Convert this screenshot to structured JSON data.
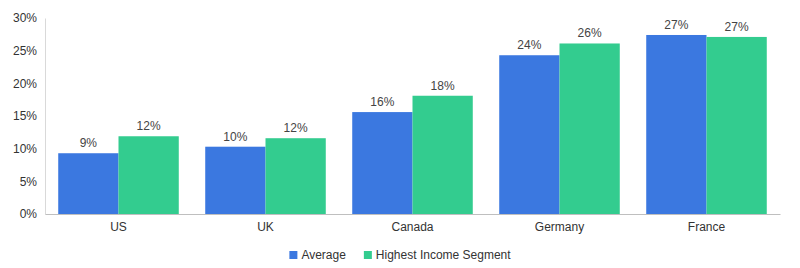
{
  "chart_data": {
    "type": "bar",
    "categories": [
      "US",
      "UK",
      "Canada",
      "Germany",
      "France"
    ],
    "series": [
      {
        "name": "Average",
        "color": "#3b78e0",
        "values": [
          9.3,
          10.3,
          15.6,
          24.3,
          27.4
        ],
        "value_labels": [
          "9%",
          "10%",
          "16%",
          "24%",
          "27%"
        ]
      },
      {
        "name": "Highest Income Segment",
        "color": "#33cc8f",
        "values": [
          11.9,
          11.6,
          18.1,
          26.1,
          27.1
        ],
        "value_labels": [
          "12%",
          "12%",
          "18%",
          "26%",
          "27%"
        ]
      }
    ],
    "ylim": [
      0,
      30
    ],
    "yticks": [
      {
        "value": 0,
        "label": "0%"
      },
      {
        "value": 5,
        "label": "5%"
      },
      {
        "value": 10,
        "label": "10%"
      },
      {
        "value": 15,
        "label": "15%"
      },
      {
        "value": 20,
        "label": "20%"
      },
      {
        "value": 25,
        "label": "25%"
      },
      {
        "value": 30,
        "label": "30%"
      }
    ],
    "grid": false,
    "data_labels": true,
    "legend": "bottom"
  }
}
